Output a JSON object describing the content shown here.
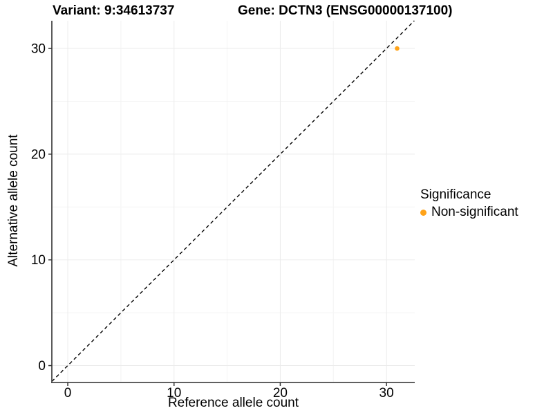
{
  "titles": {
    "variant": "Variant: 9:34613737",
    "gene": "Gene: DCTN3 (ENSG00000137100)"
  },
  "chart_data": {
    "type": "scatter",
    "title": "Variant: 9:34613737 — Gene: DCTN3 (ENSG00000137100)",
    "xlabel": "Reference allele count",
    "ylabel": "Alternative allele count",
    "xlim": [
      -1.5,
      32.66
    ],
    "ylim": [
      -1.6,
      32.62
    ],
    "x_ticks": [
      0,
      10,
      20,
      30
    ],
    "y_ticks": [
      0,
      10,
      20,
      30
    ],
    "x_minor_ticks": [
      5,
      15,
      25
    ],
    "y_minor_ticks": [
      5,
      15,
      25
    ],
    "grid": true,
    "reference_line": {
      "type": "abline",
      "slope": 1,
      "intercept": 0,
      "style": "dashed",
      "color": "#000000"
    },
    "series": [
      {
        "name": "Non-significant",
        "color": "#FFA319",
        "points": [
          {
            "x": 31,
            "y": 30
          }
        ]
      }
    ],
    "legend": {
      "title": "Significance",
      "position": "right",
      "entries": [
        {
          "label": "Non-significant",
          "color": "#FFA319"
        }
      ]
    }
  },
  "colors": {
    "background": "#ffffff",
    "major_grid": "#EBEBEB",
    "minor_grid": "#F4F4F4",
    "axis_line": "#4a4a4a",
    "tick_mark": "#333333",
    "text": "#000000",
    "point": "#FFA319"
  }
}
